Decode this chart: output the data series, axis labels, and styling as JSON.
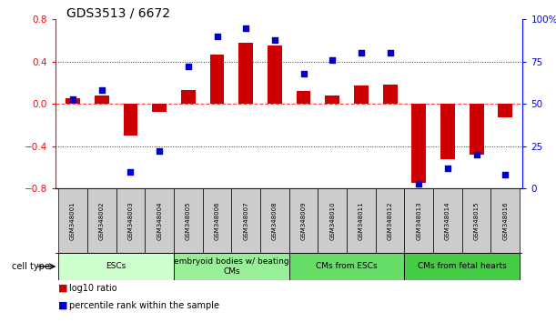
{
  "title": "GDS3513 / 6672",
  "samples": [
    "GSM348001",
    "GSM348002",
    "GSM348003",
    "GSM348004",
    "GSM348005",
    "GSM348006",
    "GSM348007",
    "GSM348008",
    "GSM348009",
    "GSM348010",
    "GSM348011",
    "GSM348012",
    "GSM348013",
    "GSM348014",
    "GSM348015",
    "GSM348016"
  ],
  "log10_ratio": [
    0.05,
    0.08,
    -0.3,
    -0.08,
    0.13,
    0.47,
    0.58,
    0.55,
    0.12,
    0.08,
    0.17,
    0.18,
    -0.75,
    -0.52,
    -0.48,
    -0.13
  ],
  "percentile_rank": [
    53,
    58,
    10,
    22,
    72,
    90,
    95,
    88,
    68,
    76,
    80,
    80,
    3,
    12,
    20,
    8
  ],
  "ylim_left": [
    -0.8,
    0.8
  ],
  "ylim_right": [
    0,
    100
  ],
  "yticks_left": [
    -0.8,
    -0.4,
    0.0,
    0.4,
    0.8
  ],
  "yticks_right": [
    0,
    25,
    50,
    75,
    100
  ],
  "bar_color": "#CC0000",
  "dot_color": "#0000CC",
  "cell_types": [
    {
      "label": "ESCs",
      "start": 0,
      "end": 3,
      "color": "#CCFFCC"
    },
    {
      "label": "embryoid bodies w/ beating\nCMs",
      "start": 4,
      "end": 7,
      "color": "#99EE99"
    },
    {
      "label": "CMs from ESCs",
      "start": 8,
      "end": 11,
      "color": "#66DD66"
    },
    {
      "label": "CMs from fetal hearts",
      "start": 12,
      "end": 15,
      "color": "#44CC44"
    }
  ],
  "cell_type_label": "cell type",
  "legend_ratio_label": "log10 ratio",
  "legend_pct_label": "percentile rank within the sample",
  "hline_color": "#FF4444",
  "dotted_color": "#333333",
  "sample_box_color": "#CCCCCC",
  "title_fontsize": 10,
  "tick_fontsize": 7.5,
  "sample_fontsize": 5,
  "celltype_fontsize": 6.5
}
